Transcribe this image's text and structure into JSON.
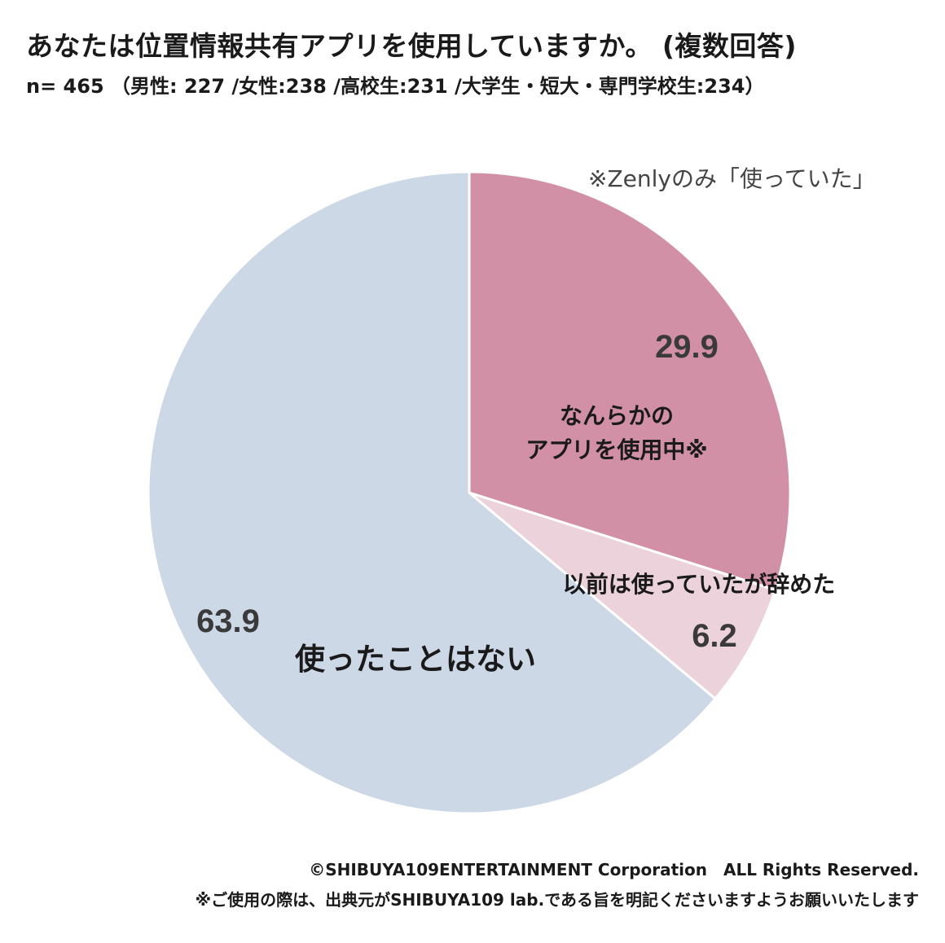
{
  "header": {
    "title": "あなたは位置情報共有アプリを使用していますか。 (複数回答)",
    "subtitle": "n= 465 （男性: 227 /女性:238 /高校生:231 /大学生・短大・専門学校生:234）"
  },
  "note": "※Zenlyのみ「使っていた」",
  "footer": {
    "copyright": "©SHIBUYA109ENTERTAINMENT Corporation　ALL Rights Reserved.",
    "usage_note": "※ご使用の際は、出典元がSHIBUYA109 lab.である旨を明記くださいますようお願いいたします"
  },
  "chart_data": {
    "type": "pie",
    "slices": [
      {
        "label": "なんらかの\nアプリを使用中※",
        "value": 29.9,
        "value_label": "29.9",
        "color": "#d190a5"
      },
      {
        "label": "以前は使っていたが辞めた",
        "value": 6.2,
        "value_label": "6.2",
        "color": "#ecd3db"
      },
      {
        "label": "使ったことはない",
        "value": 63.9,
        "value_label": "63.9",
        "color": "#cdd8e6"
      }
    ],
    "start_angle": "12 o'clock",
    "direction": "clockwise",
    "slice_border_color": "#ffffff"
  }
}
